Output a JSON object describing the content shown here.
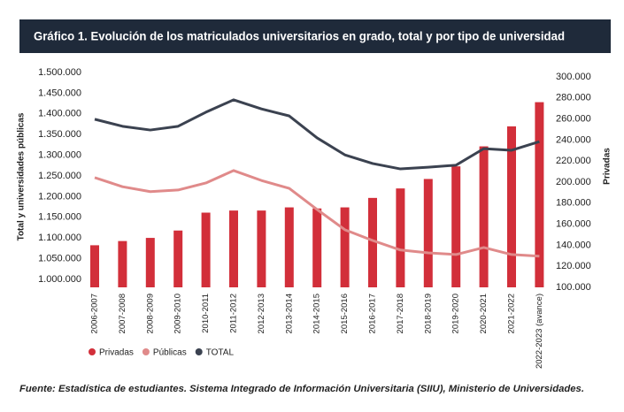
{
  "chart_data": {
    "type": "bar",
    "title": "Gráfico 1. Evolución de los matriculados universitarios en grado, total y por tipo de universidad",
    "ylabel": "Total y universidades públicas",
    "y2label": "Privadas",
    "footnote": "Fuente: Estadística de estudiantes. Sistema Integrado de Información Universitaria (SIIU), Ministerio de Universidades.",
    "categories": [
      "2006-2007",
      "2007-2008",
      "2008-2009",
      "2009-2010",
      "2010-2011",
      "2011-2012",
      "2012-2013",
      "2013-2014",
      "2014-2015",
      "2015-2016",
      "2016-2017",
      "2017-2018",
      "2018-2019",
      "2019-2020",
      "2020-2021",
      "2021-2022",
      "2022-2023 (avance)"
    ],
    "series": [
      {
        "name": "Privadas",
        "type": "bar",
        "axis": "y2",
        "color": "#d22f3a",
        "values": [
          140000,
          144000,
          147000,
          154000,
          171000,
          173000,
          173000,
          176000,
          175000,
          176000,
          185000,
          194000,
          203000,
          215000,
          234000,
          253000,
          276000
        ]
      },
      {
        "name": "Públicas",
        "type": "line",
        "color": "#e08a8a",
        "values": [
          1246000,
          1224000,
          1212000,
          1216000,
          1233000,
          1263000,
          1239000,
          1220000,
          1169000,
          1120000,
          1094000,
          1071000,
          1064000,
          1060000,
          1077000,
          1060000,
          1056000
        ]
      },
      {
        "name": "TOTAL",
        "type": "line",
        "color": "#3b4250",
        "values": [
          1387000,
          1370000,
          1361000,
          1370000,
          1404000,
          1434000,
          1412000,
          1395000,
          1342000,
          1301000,
          1280000,
          1267000,
          1271000,
          1276000,
          1316000,
          1312000,
          1333000
        ]
      }
    ],
    "ylim": [
      1000000,
      1500000
    ],
    "yticks": [
      {
        "value": 1000000,
        "label": "1.000.000"
      },
      {
        "value": 1050000,
        "label": "1.050.000"
      },
      {
        "value": 1100000,
        "label": "1.100.000"
      },
      {
        "value": 1150000,
        "label": "1.150.000"
      },
      {
        "value": 1200000,
        "label": "1.200.000"
      },
      {
        "value": 1250000,
        "label": "1.250.000"
      },
      {
        "value": 1300000,
        "label": "1.300.000"
      },
      {
        "value": 1350000,
        "label": "1.350.000"
      },
      {
        "value": 1400000,
        "label": "1.400.000"
      },
      {
        "value": 1450000,
        "label": "1.450.000"
      },
      {
        "value": 1500000,
        "label": "1.500.000"
      }
    ],
    "y2lim": [
      100000,
      300000
    ],
    "y2ticks": [
      {
        "value": 100000,
        "label": "100.000"
      },
      {
        "value": 120000,
        "label": "120.000"
      },
      {
        "value": 140000,
        "label": "140.000"
      },
      {
        "value": 160000,
        "label": "160.000"
      },
      {
        "value": 180000,
        "label": "180.000"
      },
      {
        "value": 200000,
        "label": "200.000"
      },
      {
        "value": 220000,
        "label": "220.000"
      },
      {
        "value": 240000,
        "label": "240.000"
      },
      {
        "value": 260000,
        "label": "260.000"
      },
      {
        "value": 280000,
        "label": "280.000"
      },
      {
        "value": 300000,
        "label": "300.000"
      }
    ]
  }
}
